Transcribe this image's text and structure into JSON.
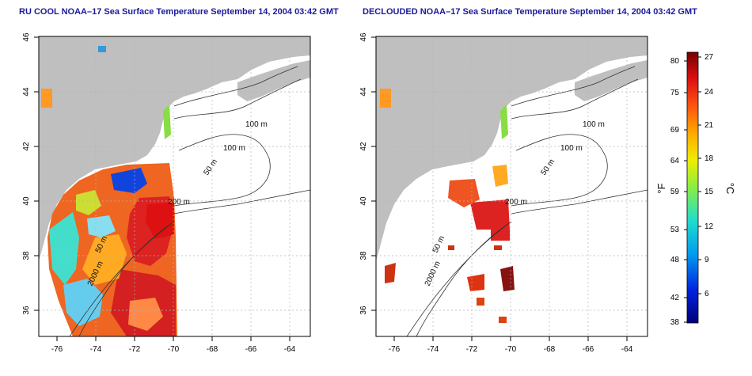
{
  "left_title": "RU COOL NOAA–17 Sea Surface Temperature September 14, 2004 03:42 GMT",
  "right_title": "DECLOUDED NOAA–17 Sea Surface Temperature September 14, 2004 03:42 GMT",
  "lon_labels": [
    "-76",
    "-74",
    "-72",
    "-70",
    "-68",
    "-66",
    "-64"
  ],
  "lat_labels": [
    "36",
    "38",
    "40",
    "42",
    "44",
    "46"
  ],
  "contour_labels": [
    "100 m",
    "100 m",
    "50 m",
    "200 m",
    "50 m",
    "2000 m"
  ],
  "colorbar": {
    "f_unit": "°F",
    "c_unit": "°C",
    "f_ticks": [
      "80",
      "75",
      "69",
      "64",
      "59",
      "53",
      "48",
      "42",
      "38"
    ],
    "c_ticks": [
      "27",
      "24",
      "21",
      "18",
      "15",
      "12",
      "9",
      "6"
    ]
  },
  "colors": {
    "land": "#bfbfbf",
    "title": "#1a1a9c",
    "grid": "#b5b5b5"
  }
}
